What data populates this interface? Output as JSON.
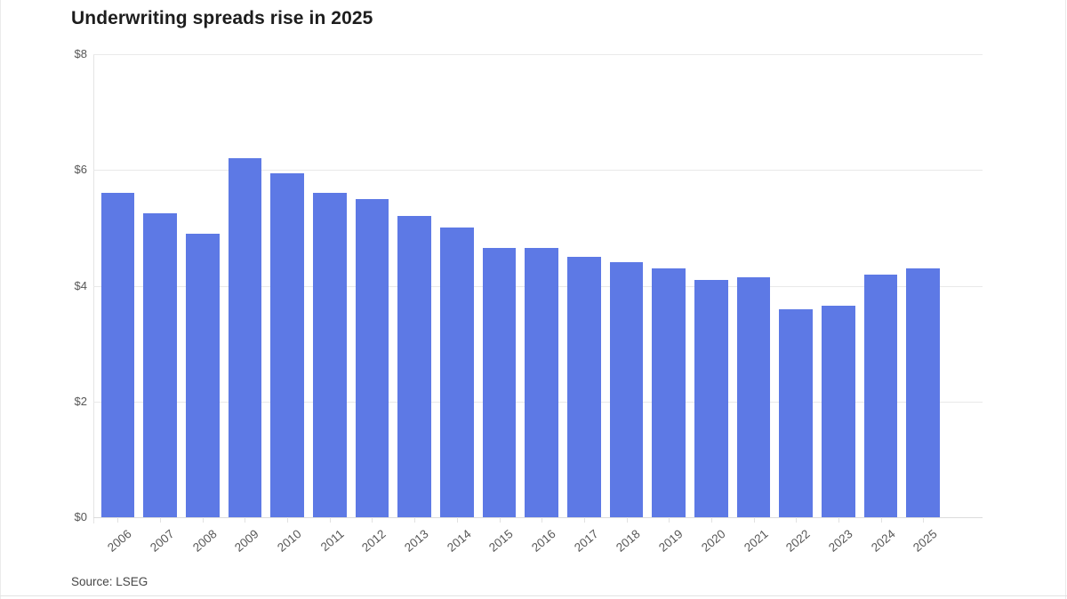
{
  "chart_data": {
    "type": "bar",
    "title": "Underwriting spreads rise in 2025",
    "source": "Source: LSEG",
    "categories": [
      "2006",
      "2007",
      "2008",
      "2009",
      "2010",
      "2011",
      "2012",
      "2013",
      "2014",
      "2015",
      "2016",
      "2017",
      "2018",
      "2019",
      "2020",
      "2021",
      "2022",
      "2023",
      "2024",
      "2025"
    ],
    "values": [
      5.6,
      5.25,
      4.9,
      6.2,
      5.95,
      5.6,
      5.5,
      5.2,
      5.0,
      4.65,
      4.65,
      4.5,
      4.4,
      4.3,
      4.1,
      4.15,
      3.6,
      3.65,
      4.2,
      4.3
    ],
    "xlabel": "",
    "ylabel": "",
    "ylim": [
      0,
      8
    ],
    "ytick_values": [
      0,
      2,
      4,
      6,
      8
    ],
    "ytick_labels": [
      "$0",
      "$2",
      "$4",
      "$6",
      "$8"
    ],
    "grid": true,
    "legend": "none",
    "bar_color": "#5d79e5",
    "grid_color": "#e9e9e9",
    "baseline_color": "#dcdcdc",
    "axis_text_color": "#575757",
    "title_color": "#1d1d1d"
  }
}
